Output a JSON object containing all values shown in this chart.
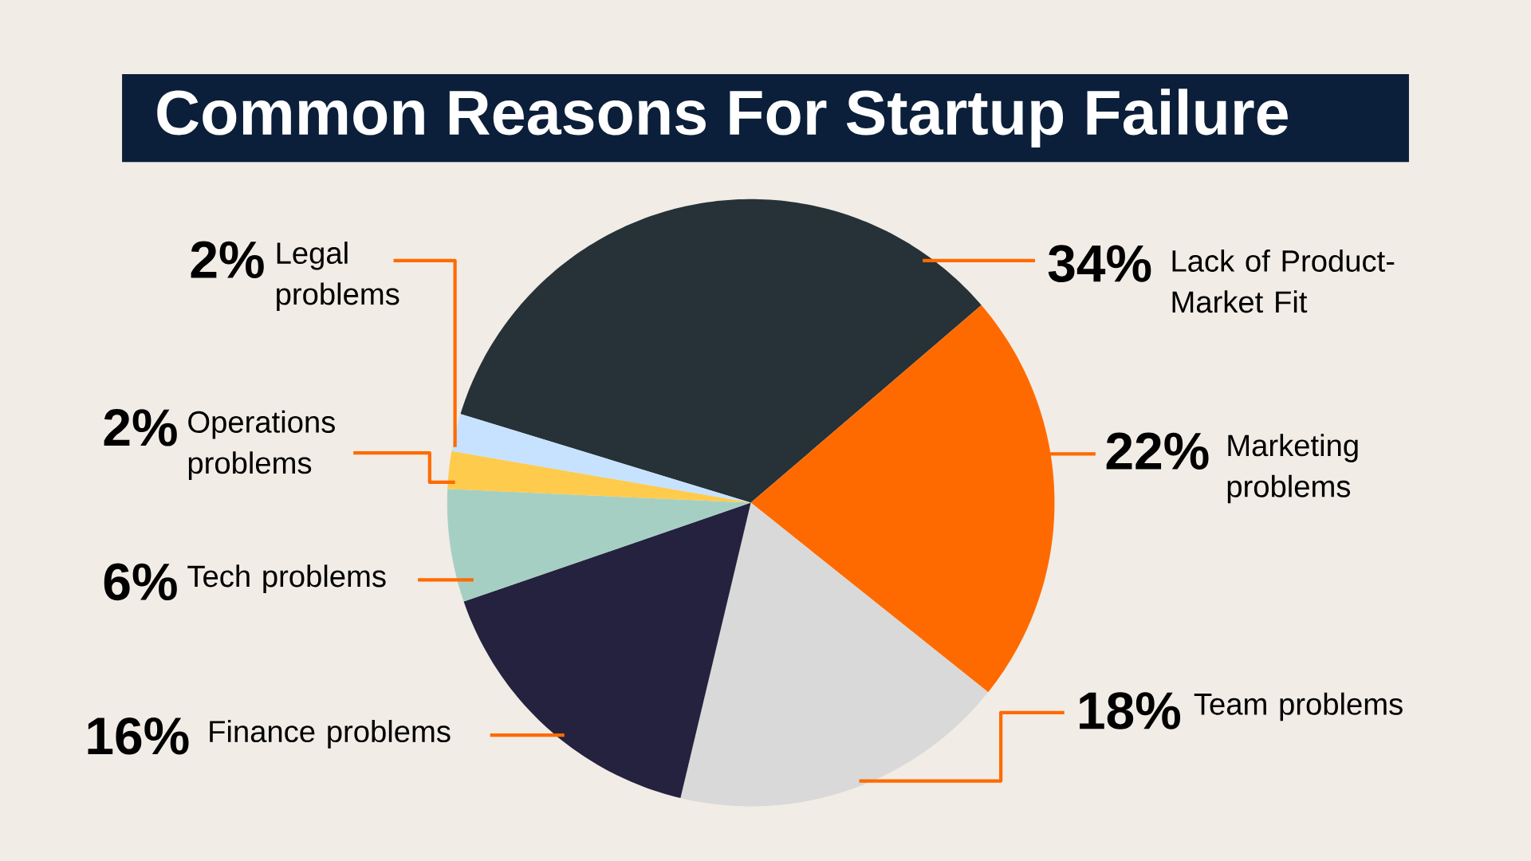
{
  "chart_data": {
    "type": "pie",
    "title": "Common Reasons For Startup Failure",
    "categories": [
      "Lack of Product-Market Fit",
      "Marketing problems",
      "Team problems",
      "Finance problems",
      "Tech problems",
      "Operations problems",
      "Legal problems"
    ],
    "values": [
      34,
      22,
      18,
      16,
      6,
      2,
      2
    ],
    "colors": [
      "#263238",
      "#ff6a00",
      "#d9d9d9",
      "#252240",
      "#a6cfc4",
      "#ffcb4c",
      "#c6e2ff"
    ],
    "value_labels": [
      "34%",
      "22%",
      "18%",
      "16%",
      "6%",
      "2%",
      "2%"
    ]
  }
}
